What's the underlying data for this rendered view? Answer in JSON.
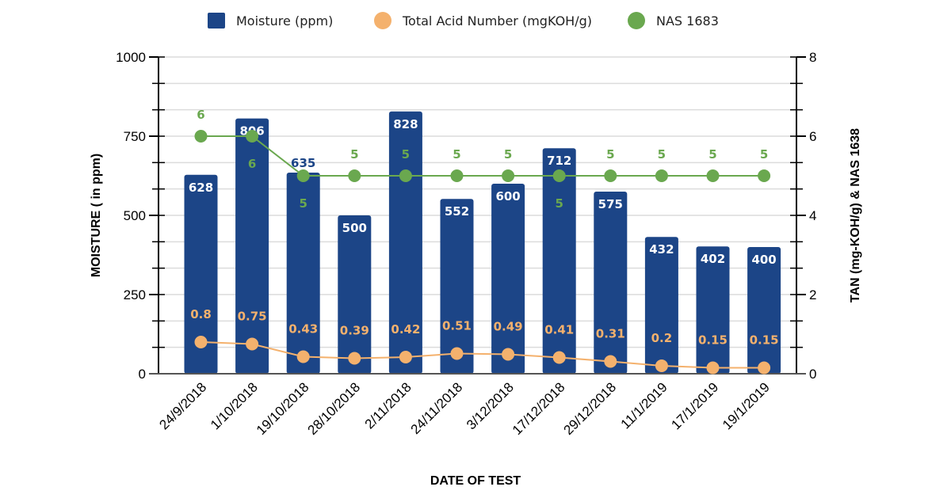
{
  "chart_data": {
    "type": "bar",
    "categories": [
      "24/9/2018",
      "1/10/2018",
      "19/10/2018",
      "28/10/2018",
      "2/11/2018",
      "24/11/2018",
      "3/12/2018",
      "17/12/2018",
      "29/12/2018",
      "11/1/2019",
      "17/1/2019",
      "19/1/2019"
    ],
    "series": [
      {
        "name": "Moisture (ppm)",
        "type": "bar",
        "axis": "left",
        "color": "#1c4587",
        "values": [
          628,
          806,
          635,
          500,
          828,
          552,
          600,
          712,
          575,
          432,
          402,
          400
        ]
      },
      {
        "name": "Total Acid Number (mgKOH/g)",
        "type": "line",
        "axis": "right",
        "color": "#f4b16d",
        "values": [
          0.8,
          0.75,
          0.43,
          0.39,
          0.42,
          0.51,
          0.49,
          0.41,
          0.31,
          0.2,
          0.15,
          0.15
        ]
      },
      {
        "name": "NAS 1683",
        "type": "line",
        "axis": "right",
        "color": "#6aa84f",
        "values": [
          6,
          6,
          5,
          5,
          5,
          5,
          5,
          5,
          5,
          5,
          5,
          5
        ]
      }
    ],
    "xlabel": "DATE OF TEST",
    "ylabel": "MOISTURE ( in ppm)",
    "y2label": "TAN (mg-KOH/g) & NAS 1638",
    "ylim": [
      0,
      1000
    ],
    "y2lim": [
      0,
      8
    ],
    "yticks": [
      "0",
      "250",
      "500",
      "750",
      "1000"
    ],
    "y2ticks": [
      "0",
      "2",
      "4",
      "6",
      "8"
    ],
    "legend_position": "top",
    "grid": true
  }
}
